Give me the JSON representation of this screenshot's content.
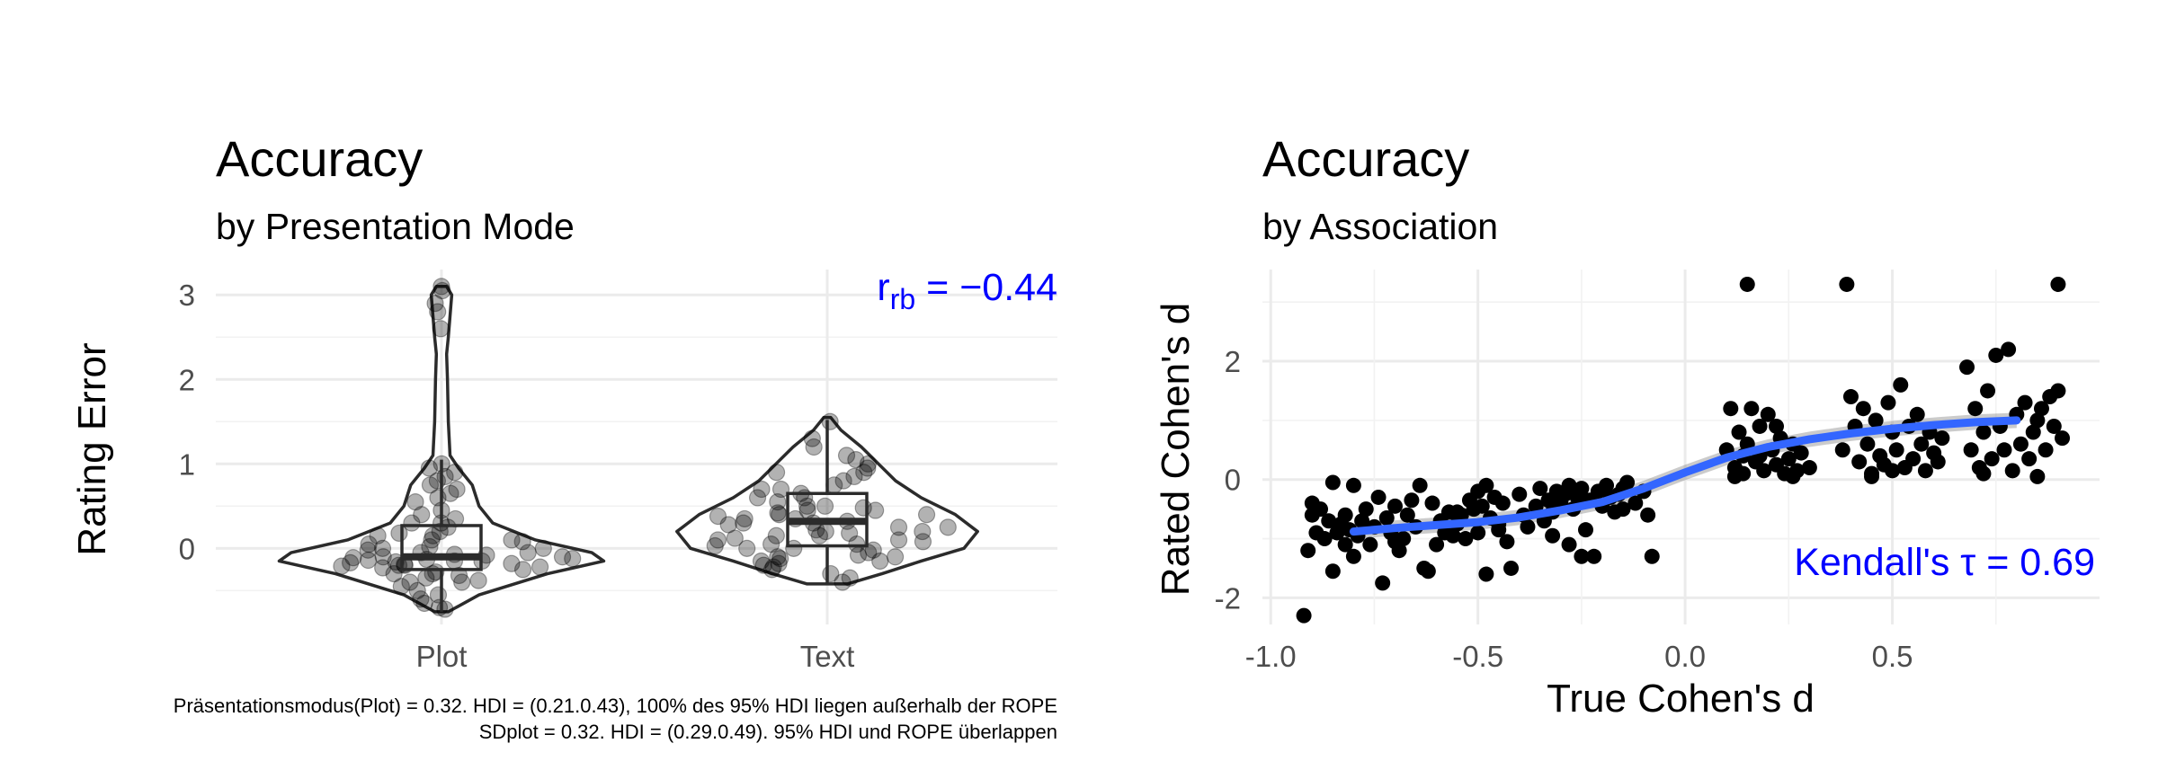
{
  "chart_data": [
    {
      "type": "violin",
      "title": "Accuracy",
      "subtitle": "by Presentation Mode",
      "ylabel": "Rating Error",
      "xlabel": "",
      "categories": [
        "Plot",
        "Text"
      ],
      "yticks": [
        "0",
        "1",
        "2",
        "3"
      ],
      "ylim": [
        -0.9,
        3.3
      ],
      "annotation": {
        "base": "r",
        "sub": "rb",
        "rest": " = −0.44"
      },
      "grid": true,
      "boxes": [
        {
          "category": "Plot",
          "q1": -0.25,
          "median": -0.1,
          "q3": 0.27,
          "whisker_low": -0.75,
          "whisker_high": 1.05
        },
        {
          "category": "Text",
          "q1": 0.03,
          "median": 0.32,
          "q3": 0.65,
          "whisker_low": -0.42,
          "whisker_high": 1.52
        }
      ],
      "violins": [
        {
          "category": "Plot",
          "profile": [
            [
              -0.75,
              0.04
            ],
            [
              -0.55,
              0.22
            ],
            [
              -0.3,
              0.62
            ],
            [
              -0.15,
              0.95
            ],
            [
              -0.05,
              0.88
            ],
            [
              0.1,
              0.55
            ],
            [
              0.3,
              0.3
            ],
            [
              0.5,
              0.22
            ],
            [
              0.75,
              0.18
            ],
            [
              0.95,
              0.1
            ],
            [
              1.1,
              0.05
            ],
            [
              1.5,
              0.04
            ],
            [
              2.0,
              0.035
            ],
            [
              2.3,
              0.03
            ],
            [
              2.5,
              0.04
            ],
            [
              2.75,
              0.05
            ],
            [
              3.0,
              0.06
            ],
            [
              3.1,
              0.03
            ]
          ]
        },
        {
          "category": "Text",
          "profile": [
            [
              -0.42,
              0.12
            ],
            [
              -0.3,
              0.32
            ],
            [
              -0.15,
              0.55
            ],
            [
              0.0,
              0.8
            ],
            [
              0.2,
              0.88
            ],
            [
              0.4,
              0.75
            ],
            [
              0.6,
              0.55
            ],
            [
              0.8,
              0.4
            ],
            [
              1.0,
              0.3
            ],
            [
              1.2,
              0.2
            ],
            [
              1.4,
              0.08
            ],
            [
              1.55,
              0.02
            ]
          ]
        }
      ],
      "points": [
        {
          "category": "Plot",
          "values": [
            3.1,
            3.05,
            2.9,
            2.8,
            2.6,
            1.0,
            0.95,
            0.9,
            0.85,
            0.8,
            0.75,
            0.7,
            0.65,
            0.55,
            0.45,
            0.4,
            0.35,
            0.3,
            0.25,
            0.2,
            0.18,
            0.15,
            0.1,
            0.08,
            0.05,
            0.02,
            0.0,
            -0.02,
            -0.05,
            -0.07,
            -0.08,
            -0.1,
            -0.11,
            -0.12,
            -0.13,
            -0.14,
            -0.15,
            -0.16,
            -0.17,
            -0.18,
            -0.19,
            -0.2,
            -0.21,
            -0.22,
            -0.23,
            -0.25,
            -0.28,
            -0.3,
            -0.32,
            -0.35,
            -0.38,
            -0.4,
            -0.45,
            -0.5,
            -0.55,
            -0.6,
            -0.65,
            -0.7,
            -0.72,
            -0.15,
            -0.1,
            -0.2,
            0.1,
            0.3,
            0.6,
            -0.05,
            -0.3,
            0.15,
            -0.4,
            0.0
          ]
        },
        {
          "category": "Text",
          "values": [
            1.5,
            1.3,
            1.2,
            1.1,
            1.05,
            1.0,
            0.95,
            0.9,
            0.85,
            0.8,
            0.75,
            0.7,
            0.65,
            0.6,
            0.55,
            0.5,
            0.48,
            0.45,
            0.42,
            0.4,
            0.38,
            0.35,
            0.32,
            0.3,
            0.28,
            0.25,
            0.22,
            0.2,
            0.18,
            0.15,
            0.12,
            0.1,
            0.08,
            0.05,
            0.03,
            0.0,
            -0.02,
            -0.05,
            -0.08,
            -0.1,
            -0.12,
            -0.15,
            -0.18,
            -0.2,
            -0.22,
            -0.25,
            -0.3,
            -0.35,
            -0.4,
            0.3,
            0.2,
            0.1,
            0.4,
            0.5,
            0.6,
            0.0,
            -0.1,
            0.15,
            0.25,
            0.35,
            0.7,
            0.9,
            0.05,
            -0.15,
            0.45
          ]
        }
      ]
    },
    {
      "type": "scatter",
      "title": "Accuracy",
      "subtitle": "by Association",
      "xlabel": "True Cohen's d",
      "ylabel": "Rated Cohen's d",
      "xticks": [
        "-1.0",
        "-0.5",
        "0.0",
        "0.5"
      ],
      "yticks": [
        "-2",
        "0",
        "2"
      ],
      "xlim": [
        -1.02,
        1.0
      ],
      "ylim": [
        -2.45,
        3.55
      ],
      "annotation": "Kendall's τ = 0.69",
      "grid": true,
      "points": [
        [
          -0.92,
          -2.3
        ],
        [
          -0.91,
          -1.2
        ],
        [
          -0.9,
          -0.6
        ],
        [
          -0.9,
          -0.4
        ],
        [
          -0.89,
          -0.9
        ],
        [
          -0.88,
          -0.5
        ],
        [
          -0.87,
          -1.0
        ],
        [
          -0.86,
          -0.7
        ],
        [
          -0.85,
          -1.55
        ],
        [
          -0.85,
          -0.05
        ],
        [
          -0.84,
          -0.9
        ],
        [
          -0.83,
          -0.75
        ],
        [
          -0.82,
          -1.1
        ],
        [
          -0.82,
          -0.6
        ],
        [
          -0.81,
          -0.85
        ],
        [
          -0.8,
          -1.3
        ],
        [
          -0.8,
          -0.1
        ],
        [
          -0.79,
          -0.95
        ],
        [
          -0.78,
          -0.7
        ],
        [
          -0.77,
          -0.5
        ],
        [
          -0.76,
          -1.1
        ],
        [
          -0.75,
          -0.8
        ],
        [
          -0.74,
          -0.3
        ],
        [
          -0.73,
          -1.75
        ],
        [
          -0.72,
          -0.65
        ],
        [
          -0.71,
          -0.9
        ],
        [
          -0.7,
          -0.45
        ],
        [
          -0.69,
          -1.2
        ],
        [
          -0.68,
          -1.0
        ],
        [
          -0.67,
          -0.6
        ],
        [
          -0.66,
          -0.35
        ],
        [
          -0.65,
          -0.8
        ],
        [
          -0.64,
          -0.1
        ],
        [
          -0.63,
          -1.5
        ],
        [
          -0.62,
          -1.55
        ],
        [
          -0.61,
          -0.4
        ],
        [
          -0.6,
          -1.1
        ],
        [
          -0.59,
          -0.7
        ],
        [
          -0.58,
          -0.9
        ],
        [
          -0.57,
          -0.55
        ],
        [
          -0.56,
          -0.95
        ],
        [
          -0.55,
          -0.75
        ],
        [
          -0.54,
          -0.6
        ],
        [
          -0.53,
          -1.0
        ],
        [
          -0.52,
          -0.35
        ],
        [
          -0.51,
          -0.5
        ],
        [
          -0.5,
          -0.2
        ],
        [
          -0.5,
          -0.9
        ],
        [
          -0.49,
          -0.45
        ],
        [
          -0.48,
          -0.1
        ],
        [
          -0.48,
          -1.6
        ],
        [
          -0.47,
          -0.65
        ],
        [
          -0.46,
          -0.3
        ],
        [
          -0.45,
          -0.85
        ],
        [
          -0.44,
          -0.4
        ],
        [
          -0.43,
          -1.05
        ],
        [
          -0.42,
          -1.5
        ],
        [
          -0.4,
          -0.25
        ],
        [
          -0.39,
          -0.6
        ],
        [
          -0.38,
          -0.8
        ],
        [
          -0.36,
          -0.45
        ],
        [
          -0.35,
          -0.15
        ],
        [
          -0.34,
          -0.7
        ],
        [
          -0.33,
          -0.35
        ],
        [
          -0.32,
          -0.55
        ],
        [
          -0.31,
          -0.2
        ],
        [
          -0.3,
          -0.4
        ],
        [
          -0.29,
          -0.25
        ],
        [
          -0.28,
          -0.1
        ],
        [
          -0.27,
          -0.5
        ],
        [
          -0.26,
          -0.3
        ],
        [
          -0.25,
          -0.15
        ],
        [
          -0.24,
          -0.85
        ],
        [
          -0.23,
          -0.35
        ],
        [
          -0.22,
          -1.3
        ],
        [
          -0.21,
          -0.2
        ],
        [
          -0.2,
          -0.45
        ],
        [
          -0.19,
          -0.1
        ],
        [
          -0.18,
          -0.3
        ],
        [
          -0.17,
          -0.55
        ],
        [
          -0.16,
          -0.25
        ],
        [
          -0.15,
          -0.15
        ],
        [
          -0.14,
          -0.05
        ],
        [
          -0.12,
          -0.4
        ],
        [
          -0.1,
          -0.2
        ],
        [
          -0.09,
          -0.6
        ],
        [
          -0.08,
          -1.3
        ],
        [
          -0.28,
          -1.1
        ],
        [
          -0.32,
          -0.95
        ],
        [
          -0.45,
          -0.75
        ],
        [
          -0.55,
          -0.55
        ],
        [
          -0.7,
          -1.05
        ],
        [
          -0.25,
          -1.3
        ],
        [
          -0.15,
          -0.5
        ],
        [
          0.1,
          0.5
        ],
        [
          0.11,
          1.2
        ],
        [
          0.12,
          0.2
        ],
        [
          0.13,
          0.8
        ],
        [
          0.14,
          0.1
        ],
        [
          0.15,
          0.6
        ],
        [
          0.15,
          3.3
        ],
        [
          0.16,
          1.2
        ],
        [
          0.17,
          0.3
        ],
        [
          0.18,
          0.9
        ],
        [
          0.19,
          0.15
        ],
        [
          0.2,
          1.1
        ],
        [
          0.21,
          0.5
        ],
        [
          0.22,
          0.25
        ],
        [
          0.23,
          0.7
        ],
        [
          0.24,
          0.1
        ],
        [
          0.25,
          0.35
        ],
        [
          0.26,
          0.6
        ],
        [
          0.27,
          0.15
        ],
        [
          0.28,
          0.45
        ],
        [
          0.3,
          0.2
        ],
        [
          0.12,
          0.05
        ],
        [
          0.18,
          0.4
        ],
        [
          0.22,
          0.9
        ],
        [
          0.26,
          0.05
        ],
        [
          0.14,
          0.4
        ],
        [
          0.38,
          0.5
        ],
        [
          0.39,
          3.3
        ],
        [
          0.4,
          1.4
        ],
        [
          0.41,
          0.9
        ],
        [
          0.42,
          0.3
        ],
        [
          0.43,
          1.2
        ],
        [
          0.44,
          0.6
        ],
        [
          0.45,
          0.1
        ],
        [
          0.46,
          1.0
        ],
        [
          0.47,
          0.4
        ],
        [
          0.48,
          0.25
        ],
        [
          0.49,
          1.3
        ],
        [
          0.5,
          0.8
        ],
        [
          0.51,
          0.5
        ],
        [
          0.52,
          1.6
        ],
        [
          0.53,
          0.2
        ],
        [
          0.54,
          0.9
        ],
        [
          0.55,
          0.35
        ],
        [
          0.56,
          1.1
        ],
        [
          0.57,
          0.6
        ],
        [
          0.58,
          0.15
        ],
        [
          0.59,
          0.8
        ],
        [
          0.6,
          0.45
        ],
        [
          0.61,
          0.3
        ],
        [
          0.62,
          0.7
        ],
        [
          0.45,
          0.05
        ],
        [
          0.5,
          0.15
        ],
        [
          0.68,
          1.9
        ],
        [
          0.69,
          0.5
        ],
        [
          0.7,
          1.2
        ],
        [
          0.71,
          0.2
        ],
        [
          0.72,
          0.8
        ],
        [
          0.73,
          1.5
        ],
        [
          0.74,
          0.35
        ],
        [
          0.75,
          2.1
        ],
        [
          0.76,
          0.9
        ],
        [
          0.77,
          0.5
        ],
        [
          0.78,
          2.2
        ],
        [
          0.79,
          0.15
        ],
        [
          0.8,
          1.1
        ],
        [
          0.81,
          0.6
        ],
        [
          0.82,
          1.3
        ],
        [
          0.83,
          0.35
        ],
        [
          0.84,
          0.8
        ],
        [
          0.85,
          0.05
        ],
        [
          0.86,
          1.2
        ],
        [
          0.87,
          0.5
        ],
        [
          0.88,
          1.4
        ],
        [
          0.89,
          0.9
        ],
        [
          0.9,
          1.5
        ],
        [
          0.9,
          3.3
        ],
        [
          0.91,
          0.7
        ],
        [
          0.72,
          0.1
        ],
        [
          0.85,
          1.0
        ]
      ],
      "smooth": [
        [
          -0.8,
          -0.88
        ],
        [
          -0.7,
          -0.82
        ],
        [
          -0.6,
          -0.77
        ],
        [
          -0.5,
          -0.72
        ],
        [
          -0.4,
          -0.64
        ],
        [
          -0.3,
          -0.52
        ],
        [
          -0.2,
          -0.38
        ],
        [
          -0.1,
          -0.15
        ],
        [
          0.0,
          0.12
        ],
        [
          0.1,
          0.37
        ],
        [
          0.2,
          0.55
        ],
        [
          0.3,
          0.68
        ],
        [
          0.4,
          0.78
        ],
        [
          0.5,
          0.86
        ],
        [
          0.6,
          0.92
        ],
        [
          0.7,
          0.97
        ],
        [
          0.8,
          1.0
        ]
      ]
    }
  ],
  "caption": {
    "line1": "Präsentationsmodus(Plot) = 0.32. HDI = (0.21.0.43), 100% des 95% HDI liegen außerhalb der ROPE",
    "line2": "SDplot = 0.32. HDI = (0.29.0.49). 95% HDI und ROPE überlappen"
  },
  "colors": {
    "annotation": "#0000ff",
    "smooth_line": "#3366ff",
    "points_dark": "#000000",
    "grid": "#ebebeb"
  }
}
